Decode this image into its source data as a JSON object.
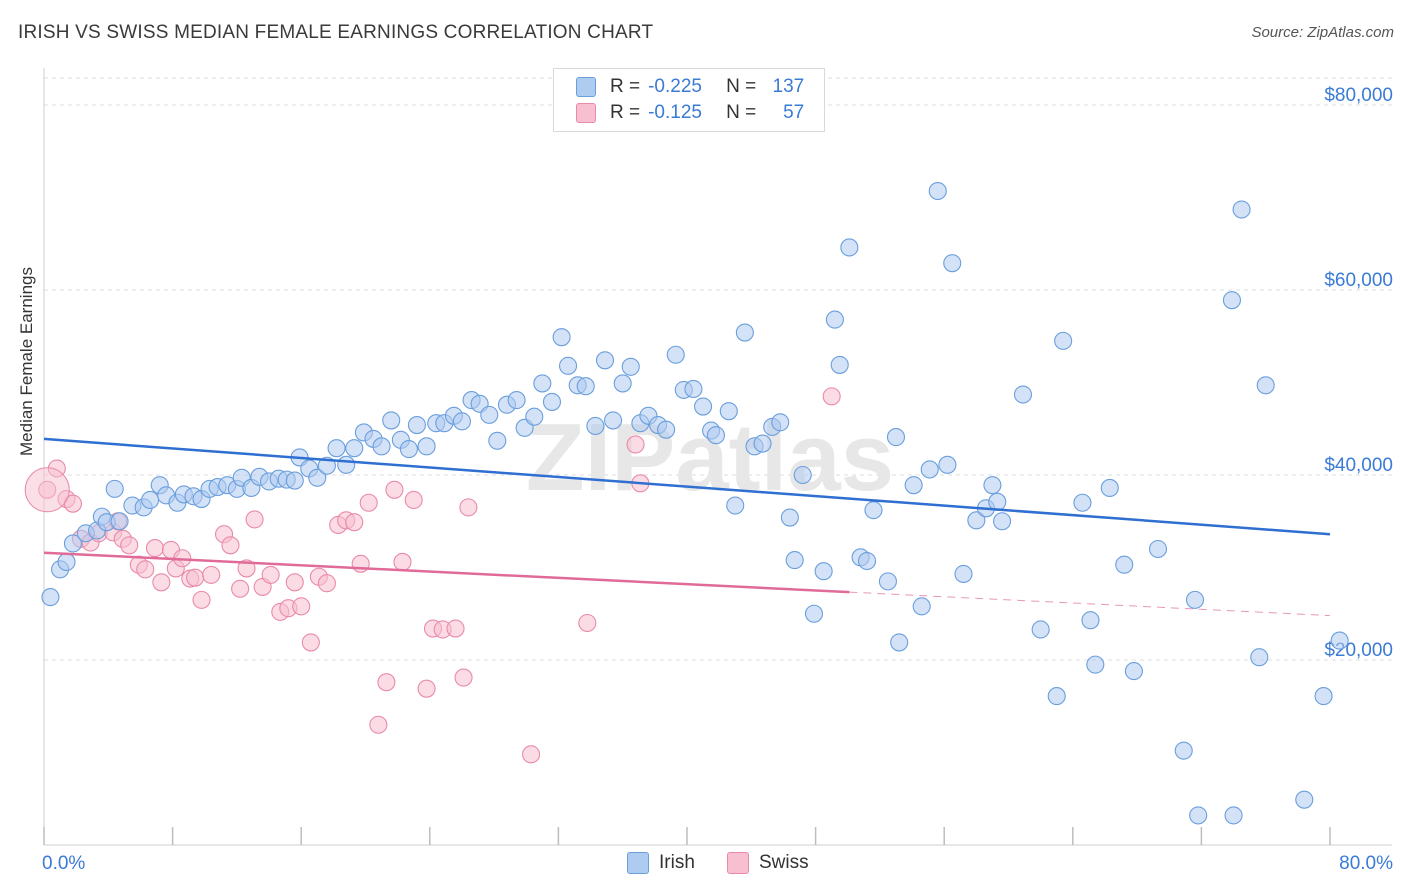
{
  "title": "IRISH VS SWISS MEDIAN FEMALE EARNINGS CORRELATION CHART",
  "source": "Source: ZipAtlas.com",
  "watermark": "ZIPatlas",
  "legend": {
    "rows": [
      {
        "r_label": "R =",
        "r_value": "-0.225",
        "n_label": "N =",
        "n_value": "137"
      },
      {
        "r_label": "R =",
        "r_value": "-0.125",
        "n_label": "N =",
        "n_value": "57"
      }
    ]
  },
  "colors": {
    "irish_fill": "#aecbf0",
    "irish_stroke": "#6a9fdc",
    "irish_line": "#2f6fd1",
    "swiss_fill": "#f7bfd0",
    "swiss_stroke": "#e98aaa",
    "swiss_line": "#e06b98",
    "axis_label": "#3a7bd5",
    "grid": "#dcdcdc"
  },
  "chart_data": {
    "type": "scatter",
    "title": "IRISH VS SWISS MEDIAN FEMALE EARNINGS CORRELATION CHART",
    "xlabel": "",
    "ylabel": "Median Female Earnings",
    "xlim": [
      0,
      80
    ],
    "ylim": [
      0,
      84000
    ],
    "x_tick_labels": [
      "0.0%",
      "80.0%"
    ],
    "y_ticks": [
      {
        "value": 20000,
        "label": "$20,000"
      },
      {
        "value": 40000,
        "label": "$40,000"
      },
      {
        "value": 60000,
        "label": "$60,000"
      },
      {
        "value": 80000,
        "label": "$80,000"
      }
    ],
    "grid": true,
    "legend_position": "top-center",
    "series": [
      {
        "name": "Irish",
        "trend": {
          "x": [
            0,
            80
          ],
          "y": [
            43900,
            33600
          ],
          "dashed_from": null
        },
        "points": [
          [
            0.4,
            26800
          ],
          [
            1.0,
            29800
          ],
          [
            1.4,
            30600
          ],
          [
            1.8,
            32600
          ],
          [
            2.6,
            33700
          ],
          [
            3.3,
            34000
          ],
          [
            3.6,
            35500
          ],
          [
            3.9,
            34900
          ],
          [
            4.4,
            38500
          ],
          [
            4.7,
            35000
          ],
          [
            5.5,
            36700
          ],
          [
            6.2,
            36500
          ],
          [
            6.6,
            37300
          ],
          [
            7.2,
            38900
          ],
          [
            7.6,
            37800
          ],
          [
            8.3,
            37000
          ],
          [
            8.7,
            37900
          ],
          [
            9.3,
            37700
          ],
          [
            9.8,
            37400
          ],
          [
            10.3,
            38500
          ],
          [
            10.8,
            38700
          ],
          [
            11.4,
            38900
          ],
          [
            12.0,
            38500
          ],
          [
            12.3,
            39700
          ],
          [
            12.9,
            38600
          ],
          [
            13.4,
            39800
          ],
          [
            14.0,
            39300
          ],
          [
            14.6,
            39600
          ],
          [
            15.1,
            39500
          ],
          [
            15.6,
            39400
          ],
          [
            15.9,
            41900
          ],
          [
            16.5,
            40700
          ],
          [
            17.0,
            39700
          ],
          [
            17.6,
            41000
          ],
          [
            18.2,
            42900
          ],
          [
            18.8,
            41100
          ],
          [
            19.3,
            42900
          ],
          [
            19.9,
            44600
          ],
          [
            20.5,
            43900
          ],
          [
            21.0,
            43100
          ],
          [
            21.6,
            45900
          ],
          [
            22.2,
            43800
          ],
          [
            22.7,
            42800
          ],
          [
            23.2,
            45400
          ],
          [
            23.8,
            43100
          ],
          [
            24.4,
            45600
          ],
          [
            24.9,
            45600
          ],
          [
            25.5,
            46400
          ],
          [
            26.0,
            45800
          ],
          [
            26.6,
            48100
          ],
          [
            27.1,
            47700
          ],
          [
            27.7,
            46500
          ],
          [
            28.2,
            43700
          ],
          [
            28.8,
            47600
          ],
          [
            29.4,
            48100
          ],
          [
            29.9,
            45100
          ],
          [
            30.5,
            46300
          ],
          [
            31.0,
            49900
          ],
          [
            31.6,
            47900
          ],
          [
            32.2,
            54900
          ],
          [
            32.6,
            51800
          ],
          [
            33.2,
            49700
          ],
          [
            33.7,
            49600
          ],
          [
            34.3,
            45300
          ],
          [
            34.9,
            52400
          ],
          [
            35.4,
            45900
          ],
          [
            36.0,
            49900
          ],
          [
            36.5,
            51700
          ],
          [
            37.1,
            45600
          ],
          [
            37.6,
            46400
          ],
          [
            38.2,
            45400
          ],
          [
            38.7,
            44900
          ],
          [
            39.3,
            53000
          ],
          [
            39.8,
            49200
          ],
          [
            40.4,
            49300
          ],
          [
            41.0,
            47400
          ],
          [
            41.5,
            44800
          ],
          [
            41.8,
            44300
          ],
          [
            42.6,
            46900
          ],
          [
            43.0,
            36700
          ],
          [
            43.6,
            55400
          ],
          [
            44.2,
            43100
          ],
          [
            44.7,
            43400
          ],
          [
            45.3,
            45200
          ],
          [
            45.8,
            45700
          ],
          [
            46.4,
            35400
          ],
          [
            46.7,
            30800
          ],
          [
            47.2,
            40000
          ],
          [
            47.9,
            25000
          ],
          [
            48.5,
            29600
          ],
          [
            49.2,
            56800
          ],
          [
            49.5,
            51900
          ],
          [
            50.1,
            64600
          ],
          [
            50.8,
            31100
          ],
          [
            51.2,
            30700
          ],
          [
            51.6,
            36200
          ],
          [
            52.5,
            28500
          ],
          [
            53.0,
            44100
          ],
          [
            53.2,
            21900
          ],
          [
            54.1,
            38900
          ],
          [
            54.6,
            25800
          ],
          [
            55.1,
            40600
          ],
          [
            55.6,
            70700
          ],
          [
            56.2,
            41100
          ],
          [
            56.5,
            62900
          ],
          [
            57.2,
            29300
          ],
          [
            58.0,
            35100
          ],
          [
            58.6,
            36400
          ],
          [
            59.0,
            38900
          ],
          [
            59.3,
            37100
          ],
          [
            59.6,
            35000
          ],
          [
            60.9,
            48700
          ],
          [
            62.0,
            23300
          ],
          [
            63.0,
            16100
          ],
          [
            63.4,
            54500
          ],
          [
            64.6,
            37000
          ],
          [
            65.1,
            24300
          ],
          [
            65.4,
            19500
          ],
          [
            66.3,
            38600
          ],
          [
            67.2,
            30300
          ],
          [
            67.8,
            18800
          ],
          [
            69.3,
            32000
          ],
          [
            70.9,
            10200
          ],
          [
            71.6,
            26500
          ],
          [
            71.8,
            3200
          ],
          [
            73.9,
            58900
          ],
          [
            74.0,
            3200
          ],
          [
            74.5,
            68700
          ],
          [
            75.6,
            20300
          ],
          [
            76.0,
            49700
          ],
          [
            78.4,
            4900
          ],
          [
            79.6,
            16100
          ],
          [
            80.6,
            22100
          ]
        ]
      },
      {
        "name": "Swiss",
        "trend": {
          "x": [
            0,
            80
          ],
          "y": [
            31600,
            24800
          ],
          "dashed_from": 50.1
        },
        "points": [
          [
            0.2,
            38400
          ],
          [
            0.8,
            40700
          ],
          [
            1.4,
            37400
          ],
          [
            1.8,
            36900
          ],
          [
            2.3,
            33100
          ],
          [
            2.9,
            32700
          ],
          [
            3.4,
            33700
          ],
          [
            4.3,
            33800
          ],
          [
            4.6,
            35000
          ],
          [
            4.9,
            33100
          ],
          [
            5.3,
            32400
          ],
          [
            5.9,
            30300
          ],
          [
            6.3,
            29800
          ],
          [
            6.9,
            32100
          ],
          [
            7.3,
            28400
          ],
          [
            7.9,
            31900
          ],
          [
            8.2,
            29900
          ],
          [
            8.6,
            31000
          ],
          [
            9.1,
            28800
          ],
          [
            9.4,
            28900
          ],
          [
            9.8,
            26500
          ],
          [
            10.4,
            29200
          ],
          [
            11.2,
            33600
          ],
          [
            11.6,
            32400
          ],
          [
            12.2,
            27700
          ],
          [
            12.6,
            29900
          ],
          [
            13.1,
            35200
          ],
          [
            13.6,
            27900
          ],
          [
            14.1,
            29200
          ],
          [
            14.7,
            25200
          ],
          [
            15.2,
            25600
          ],
          [
            15.6,
            28400
          ],
          [
            16.0,
            25800
          ],
          [
            16.6,
            21900
          ],
          [
            17.1,
            29000
          ],
          [
            17.6,
            28300
          ],
          [
            18.3,
            34600
          ],
          [
            18.8,
            35100
          ],
          [
            19.3,
            34900
          ],
          [
            19.7,
            30400
          ],
          [
            20.2,
            37000
          ],
          [
            20.8,
            13000
          ],
          [
            21.3,
            17600
          ],
          [
            21.8,
            38400
          ],
          [
            22.3,
            30600
          ],
          [
            23.0,
            37300
          ],
          [
            23.8,
            16900
          ],
          [
            24.2,
            23400
          ],
          [
            24.8,
            23300
          ],
          [
            25.6,
            23400
          ],
          [
            26.4,
            36500
          ],
          [
            26.1,
            18100
          ],
          [
            30.3,
            9800
          ],
          [
            33.8,
            24000
          ],
          [
            36.8,
            43300
          ],
          [
            37.1,
            39100
          ],
          [
            49.0,
            48500
          ]
        ]
      }
    ]
  }
}
